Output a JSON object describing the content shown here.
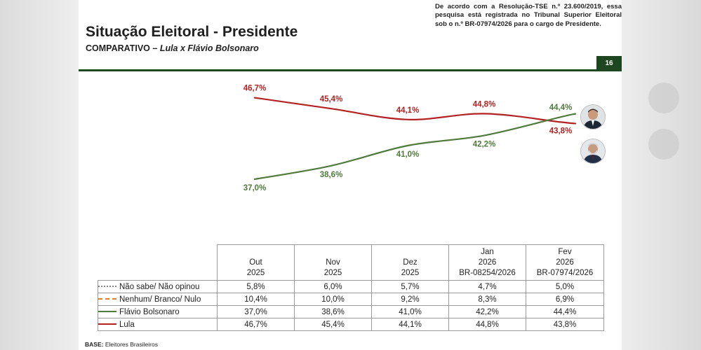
{
  "header": {
    "title": "Situação Eleitoral - Presidente",
    "subtitle_prefix": "COMPARATIVO –",
    "subtitle_italic": "Lula x Flávio Bolsonaro",
    "registration_note": "De acordo com a Resolução-TSE n.º 23.600/2019, essa pesquisa está registrada no Tribunal Superior Eleitoral sob o n.º BR-07974/2026 para o cargo de Presidente.",
    "page_number": "16"
  },
  "chart_data": {
    "type": "line",
    "title": "Situação Eleitoral - Presidente",
    "categories": [
      "Out 2025",
      "Nov 2025",
      "Dez 2025",
      "Jan 2026",
      "Fev 2026"
    ],
    "ylim": [
      30,
      50
    ],
    "grid": false,
    "series": [
      {
        "name": "Lula",
        "color": "#b22222",
        "values": [
          46.7,
          45.4,
          44.1,
          44.8,
          43.8
        ],
        "labels": [
          "46,7%",
          "45,4%",
          "44,1%",
          "44,8%",
          "43,8%"
        ]
      },
      {
        "name": "Flávio Bolsonaro",
        "color": "#4f7a3c",
        "values": [
          37.0,
          38.6,
          41.0,
          42.2,
          44.4
        ],
        "labels": [
          "37,0%",
          "38,6%",
          "41,0%",
          "42,2%",
          "44,4%"
        ]
      }
    ]
  },
  "table": {
    "columns": [
      {
        "line1": "Out",
        "line2": "2025",
        "line3": ""
      },
      {
        "line1": "Nov",
        "line2": "2025",
        "line3": ""
      },
      {
        "line1": "Dez",
        "line2": "2025",
        "line3": ""
      },
      {
        "line1": "Jan",
        "line2": "2026",
        "line3": "BR-08254/2026"
      },
      {
        "line1": "Fev",
        "line2": "2026",
        "line3": "BR-07974/2026"
      }
    ],
    "rows": [
      {
        "label": "Não sabe/ Não opinou",
        "style": "dotted",
        "color": "#8a8a8a",
        "values": [
          "5,8%",
          "6,0%",
          "5,7%",
          "4,7%",
          "5,0%"
        ]
      },
      {
        "label": "Nenhum/ Branco/ Nulo",
        "style": "dashed",
        "color": "#d9822b",
        "values": [
          "10,4%",
          "10,0%",
          "9,2%",
          "8,3%",
          "6,9%"
        ]
      },
      {
        "label": "Flávio Bolsonaro",
        "style": "solid",
        "color": "#4f7a3c",
        "values": [
          "37,0%",
          "38,6%",
          "41,0%",
          "42,2%",
          "44,4%"
        ]
      },
      {
        "label": "Lula",
        "style": "solid",
        "color": "#b22222",
        "values": [
          "46,7%",
          "45,4%",
          "44,1%",
          "44,8%",
          "43,8%"
        ]
      }
    ]
  },
  "footer": {
    "base_label": "BASE:",
    "base_value": "Eleitores Brasileiros"
  },
  "icons": {
    "candidate_top": "flavio-bolsonaro-portrait-icon",
    "candidate_bottom": "lula-portrait-icon"
  }
}
